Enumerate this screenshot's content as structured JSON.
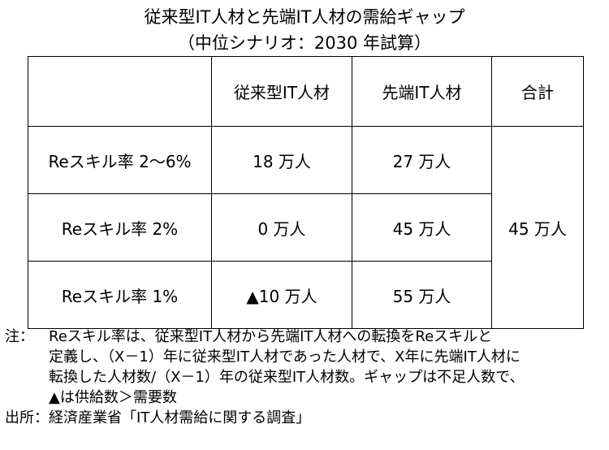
{
  "chart_data": {
    "type": "table",
    "title": "従来型IT人材と先端IT人材の需給ギャップ",
    "subtitle": "（中位シナリオ：2030 年試算）",
    "columns": [
      "",
      "従来型IT人材",
      "先端IT人材",
      "合計"
    ],
    "rows": [
      {
        "label": "Reスキル率 2～6%",
        "cells": [
          "18 万人",
          "27 万人"
        ]
      },
      {
        "label": "Reスキル率 2%",
        "cells": [
          "0 万人",
          "45 万人"
        ]
      },
      {
        "label": "Reスキル率 1%",
        "cells": [
          "▲10 万人",
          "55 万人"
        ]
      }
    ],
    "total": "45 万人",
    "series": [
      {
        "name": "従来型IT人材",
        "values": [
          18,
          0,
          -10
        ]
      },
      {
        "name": "先端IT人材",
        "values": [
          27,
          45,
          55
        ]
      }
    ],
    "note_label": "注：",
    "note_lines": [
      "Reスキル率は、従来型IT人材から先端IT人材への転換をReスキルと",
      "定義し、（X－1）年に従来型IT人材であった人材で、X年に先端IT人材に",
      "転換した人材数/（X－1）年の従来型IT人材数。ギャップは不足人数で、",
      "▲は供給数＞需要数"
    ],
    "source_label": "出所：",
    "source_text": "経済産業省「IT人材需給に関する調査」"
  }
}
